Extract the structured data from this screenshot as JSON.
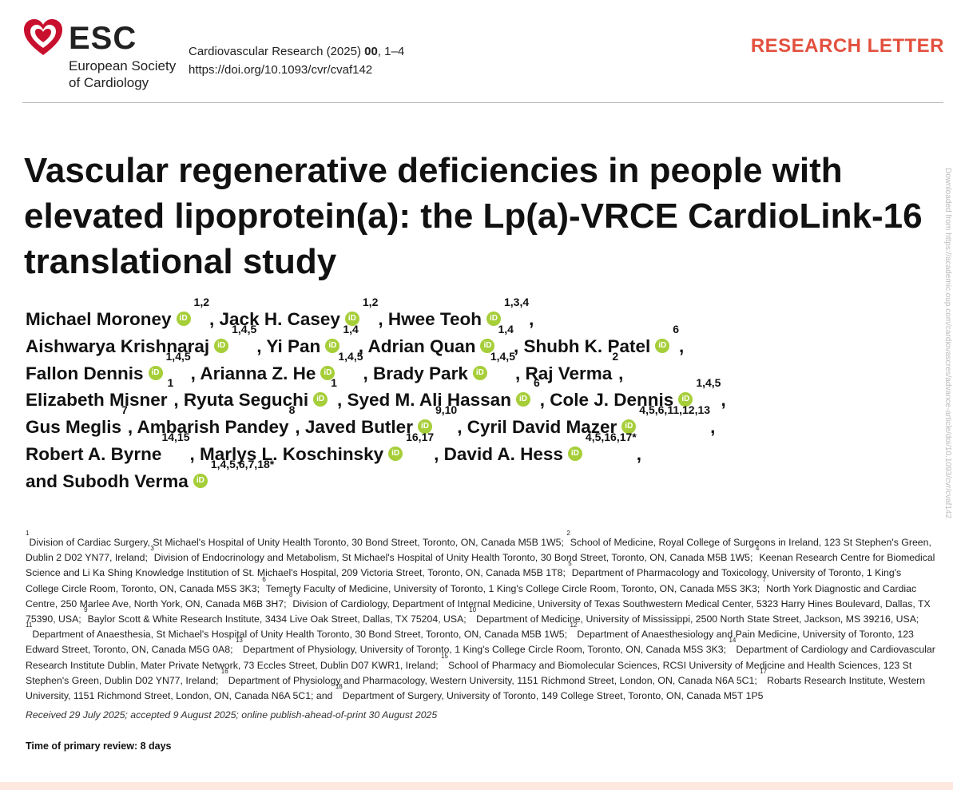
{
  "header": {
    "logo_text": "ESC",
    "society_line1": "European Society",
    "society_line2": "of Cardiology",
    "journal_prefix": "Cardiovascular Research (2025) ",
    "journal_volume": "00",
    "journal_pages": ", 1–4",
    "doi": "https://doi.org/10.1093/cvr/cvaf142",
    "article_type": "RESEARCH LETTER",
    "accent_color": "#e2513f"
  },
  "title": "Vascular regenerative deficiencies in people with elevated lipoprotein(a): the Lp(a)-VRCE CardioLink-16 translational study",
  "orcid_icon_label": "iD",
  "authors": [
    {
      "name": "Michael Moroney",
      "orcid": true,
      "aff": "1,2"
    },
    {
      "name": "Jack H. Casey",
      "orcid": true,
      "aff": "1,2"
    },
    {
      "name": "Hwee Teoh",
      "orcid": true,
      "aff": "1,3,4"
    },
    {
      "name": "Aishwarya Krishnaraj",
      "orcid": true,
      "aff": "1,4,5"
    },
    {
      "name": "Yi Pan",
      "orcid": true,
      "aff": "1,4"
    },
    {
      "name": "Adrian Quan",
      "orcid": true,
      "aff": "1,4"
    },
    {
      "name": "Shubh K. Patel",
      "orcid": true,
      "aff": "6"
    },
    {
      "name": "Fallon Dennis",
      "orcid": true,
      "aff": "1,4,5"
    },
    {
      "name": "Arianna Z. He",
      "orcid": true,
      "aff": "1,4,5"
    },
    {
      "name": "Brady Park",
      "orcid": true,
      "aff": "1,4,5"
    },
    {
      "name": "Raj Verma",
      "orcid": false,
      "aff": "2"
    },
    {
      "name": "Elizabeth Misner",
      "orcid": false,
      "aff": "1"
    },
    {
      "name": "Ryuta Seguchi",
      "orcid": true,
      "aff": "1"
    },
    {
      "name": "Syed M. Ali Hassan",
      "orcid": true,
      "aff": "6"
    },
    {
      "name": "Cole J. Dennis",
      "orcid": true,
      "aff": "1,4,5"
    },
    {
      "name": "Gus Meglis",
      "orcid": false,
      "aff": "7"
    },
    {
      "name": "Ambarish Pandey",
      "orcid": false,
      "aff": "8"
    },
    {
      "name": "Javed Butler",
      "orcid": true,
      "aff": "9,10"
    },
    {
      "name": "Cyril David Mazer",
      "orcid": true,
      "aff": "4,5,6,11,12,13"
    },
    {
      "name": "Robert A. Byrne",
      "orcid": false,
      "aff": "14,15"
    },
    {
      "name": "Marlys L. Koschinsky",
      "orcid": true,
      "aff": "16,17"
    },
    {
      "name": "David A. Hess",
      "orcid": true,
      "aff": "4,5,16,17*"
    },
    {
      "name": "Subodh Verma",
      "orcid": true,
      "aff": "1,4,5,6,7,18*"
    }
  ],
  "author_last_joiner": "and",
  "affiliations": [
    {
      "n": "1",
      "text": "Division of Cardiac Surgery, St Michael's Hospital of Unity Health Toronto, 30 Bond Street, Toronto, ON, Canada M5B 1W5;"
    },
    {
      "n": "2",
      "text": "School of Medicine, Royal College of Surgeons in Ireland, 123 St Stephen's Green, Dublin 2 D02 YN77, Ireland;"
    },
    {
      "n": "3",
      "text": "Division of Endocrinology and Metabolism, St Michael's Hospital of Unity Health Toronto, 30 Bond Street, Toronto, ON, Canada M5B 1W5;"
    },
    {
      "n": "4",
      "text": "Keenan Research Centre for Biomedical Science and Li Ka Shing Knowledge Institution of St. Michael's Hospital, 209 Victoria Street, Toronto, ON, Canada M5B 1T8;"
    },
    {
      "n": "5",
      "text": "Department of Pharmacology and Toxicology, University of Toronto, 1 King's College Circle Room, Toronto, ON, Canada M5S 3K3;"
    },
    {
      "n": "6",
      "text": "Temerty Faculty of Medicine, University of Toronto, 1 King's College Circle Room, Toronto, ON, Canada M5S 3K3;"
    },
    {
      "n": "7",
      "text": "North York Diagnostic and Cardiac Centre, 250 Marlee Ave, North York, ON, Canada M6B 3H7;"
    },
    {
      "n": "8",
      "text": "Division of Cardiology, Department of Internal Medicine, University of Texas Southwestern Medical Center, 5323 Harry Hines Boulevard, Dallas, TX 75390, USA;"
    },
    {
      "n": "9",
      "text": "Baylor Scott & White Research Institute, 3434 Live Oak Street, Dallas, TX 75204, USA;"
    },
    {
      "n": "10",
      "text": "Department of Medicine, University of Mississippi, 2500 North State Street, Jackson, MS 39216, USA;"
    },
    {
      "n": "11",
      "text": "Department of Anaesthesia, St Michael's Hospital of Unity Health Toronto, 30 Bond Street, Toronto, ON, Canada M5B 1W5;"
    },
    {
      "n": "12",
      "text": "Department of Anaesthesiology and Pain Medicine, University of Toronto, 123 Edward Street, Toronto, ON, Canada M5G 0A8;"
    },
    {
      "n": "13",
      "text": "Department of Physiology, University of Toronto, 1 King's College Circle Room, Toronto, ON, Canada M5S 3K3;"
    },
    {
      "n": "14",
      "text": "Department of Cardiology and Cardiovascular Research Institute Dublin, Mater Private Network, 73 Eccles Street, Dublin D07 KWR1, Ireland;"
    },
    {
      "n": "15",
      "text": "School of Pharmacy and Biomolecular Sciences, RCSI University of Medicine and Health Sciences, 123 St Stephen's Green, Dublin D02 YN77, Ireland;"
    },
    {
      "n": "16",
      "text": "Department of Physiology and Pharmacology, Western University, 1151 Richmond Street, London, ON, Canada N6A 5C1;"
    },
    {
      "n": "17",
      "text": "Robarts Research Institute, Western University, 1151 Richmond Street, London, ON, Canada N6A 5C1; and"
    },
    {
      "n": "18",
      "text": "Department of Surgery, University of Toronto, 149 College Street, Toronto, ON, Canada M5T 1P5"
    }
  ],
  "received_line": "Received 29 July 2025; accepted 9 August 2025; online publish-ahead-of-print 30 August 2025",
  "review_line": "Time of primary review: 8 days",
  "side_watermark": "Downloaded from https://academic.oup.com/cardiovascres/advance-article/doi/10.1093/cvr/cvaf142"
}
